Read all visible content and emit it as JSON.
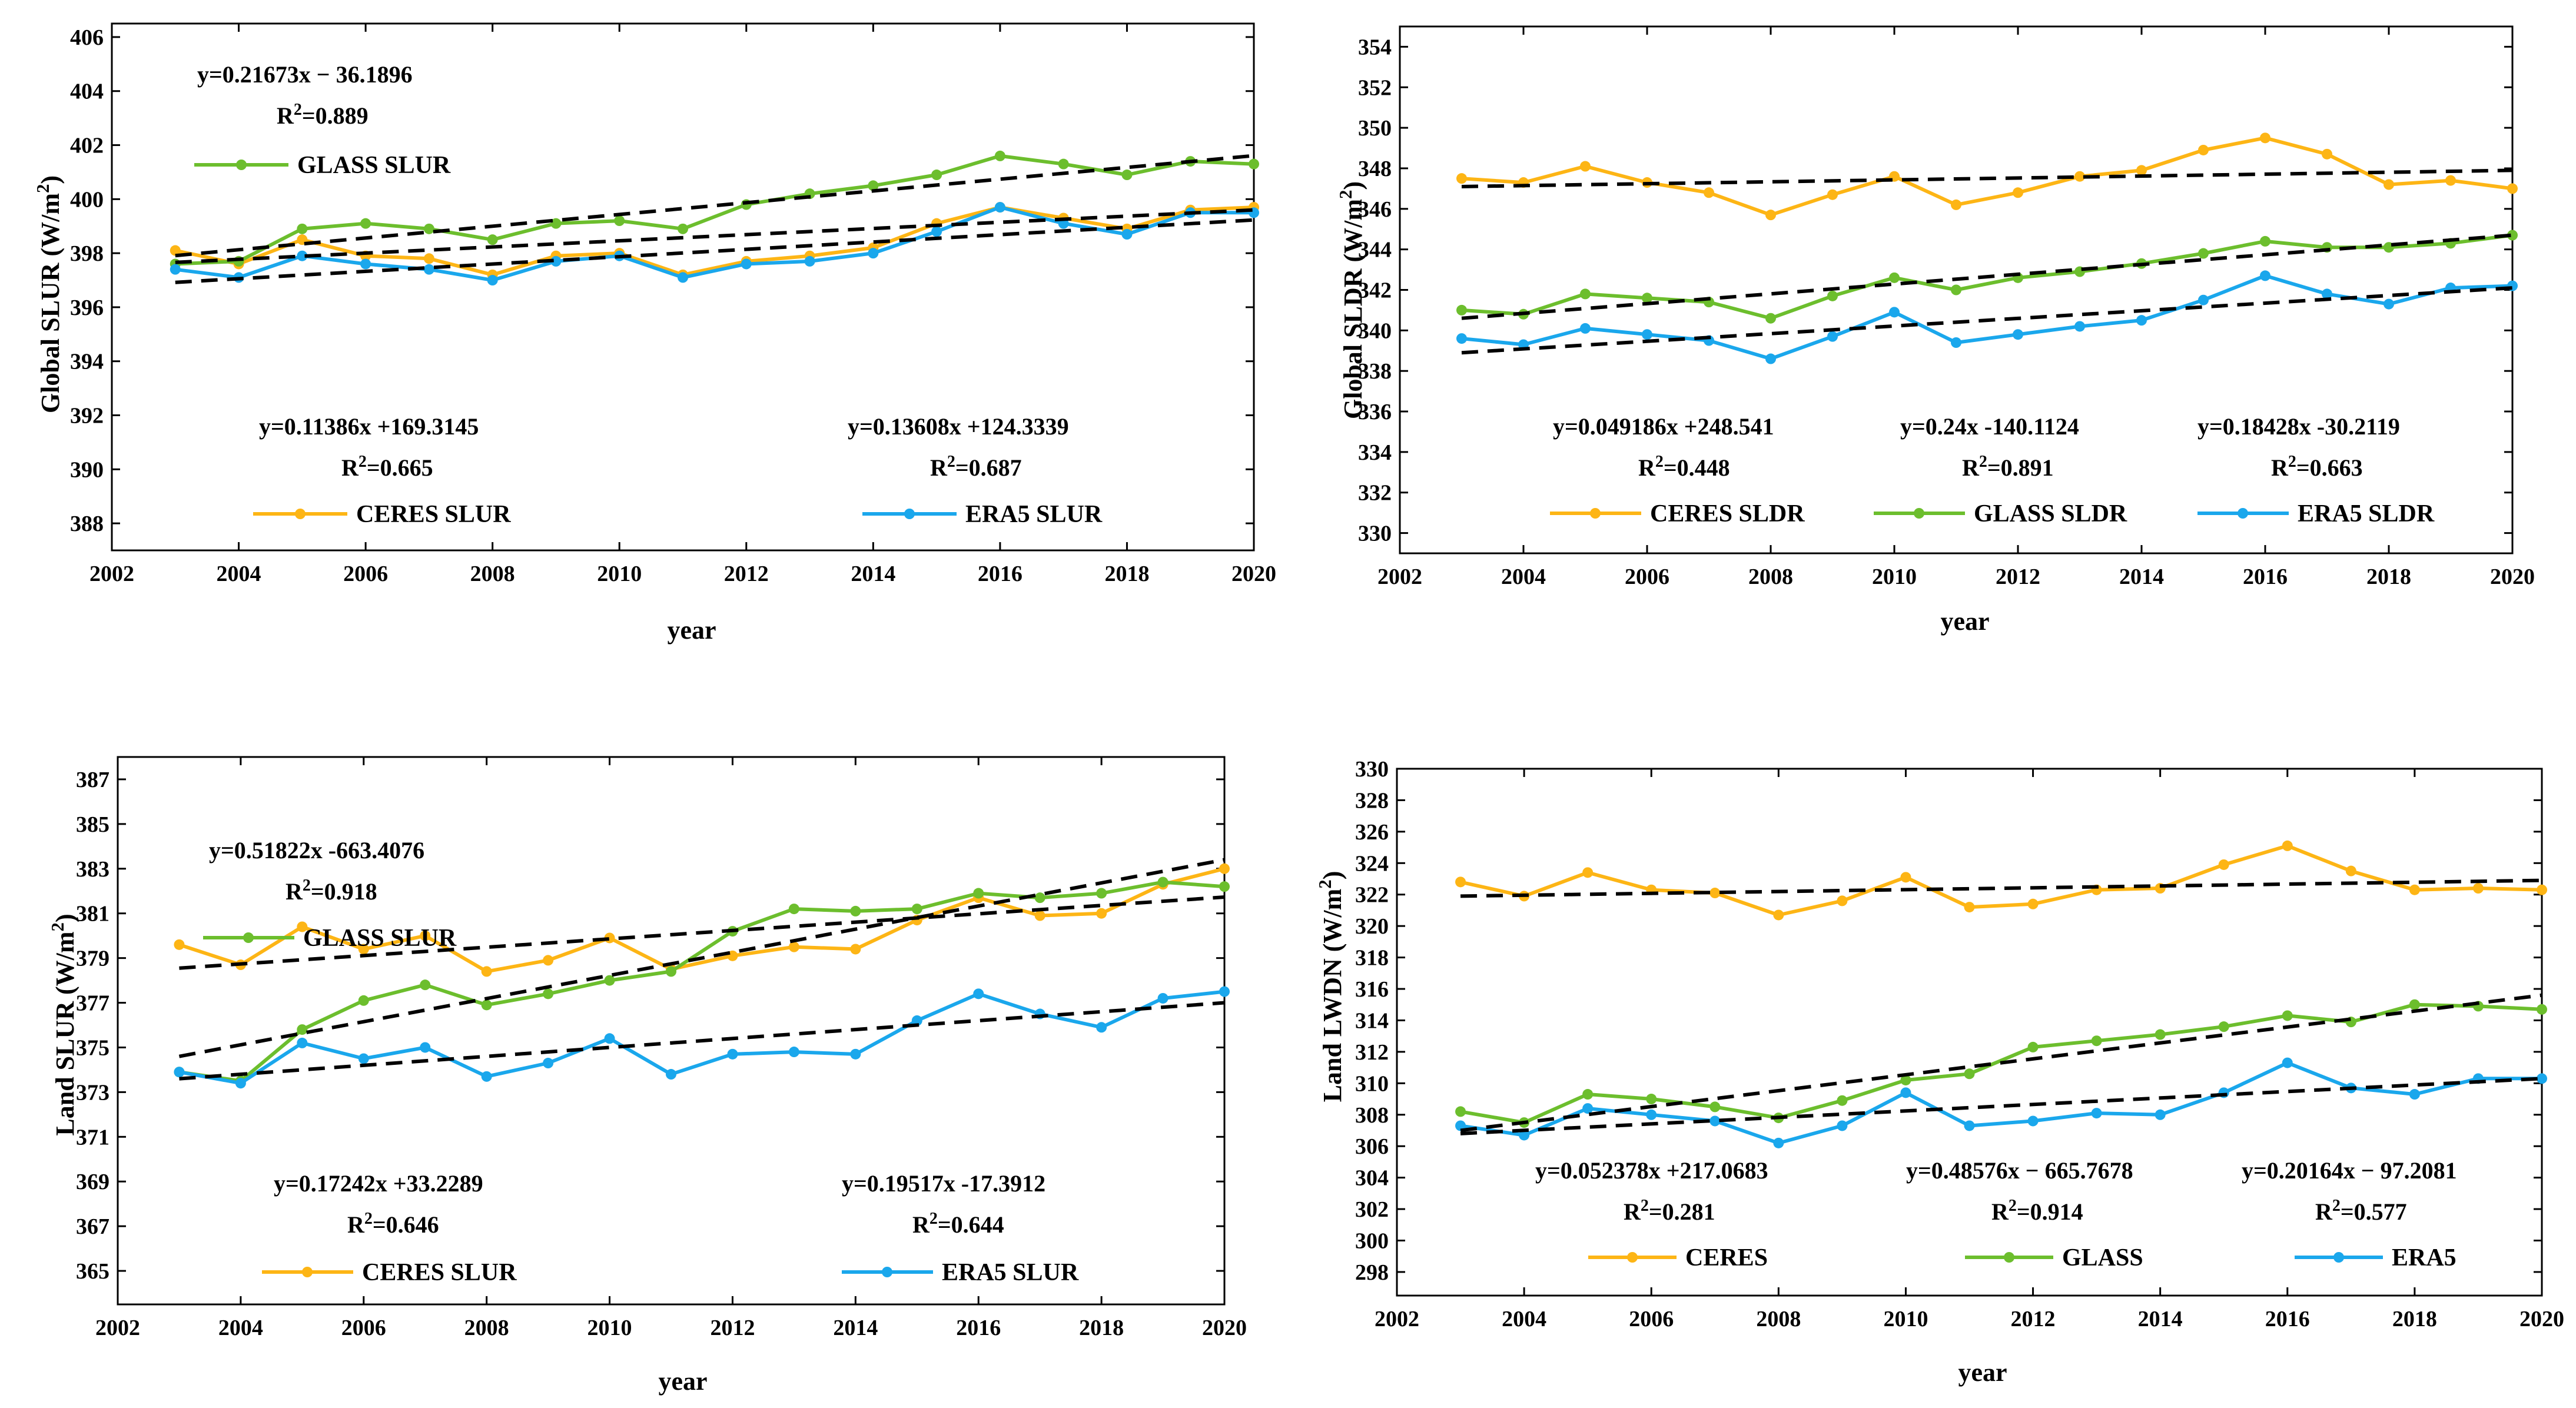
{
  "colors": {
    "ceres": "#FDB515",
    "glass": "#6CBE2D",
    "era5": "#1AA7EC"
  },
  "chart_data": [
    {
      "type": "line",
      "xlabel": "year",
      "ylabel": "Global SLUR (W/m²)",
      "xlim": [
        2002,
        2020
      ],
      "ylim": [
        387,
        406.5
      ],
      "xticks": [
        2002,
        2004,
        2006,
        2008,
        2010,
        2012,
        2014,
        2016,
        2018,
        2020
      ],
      "yticks": [
        388,
        390,
        392,
        394,
        396,
        398,
        400,
        402,
        404,
        406
      ],
      "x": [
        2003,
        2004,
        2005,
        2006,
        2007,
        2008,
        2009,
        2010,
        2011,
        2012,
        2013,
        2014,
        2015,
        2016,
        2017,
        2018,
        2019,
        2020
      ],
      "series": [
        {
          "name": "CERES SLUR",
          "color": "ceres",
          "values": [
            398.1,
            397.6,
            398.5,
            397.9,
            397.8,
            397.2,
            397.9,
            398.0,
            397.2,
            397.7,
            397.9,
            398.2,
            399.1,
            399.7,
            399.3,
            398.9,
            399.6,
            399.7
          ],
          "trend": [
            2003,
            397.66,
            2020,
            399.6
          ]
        },
        {
          "name": "GLASS SLUR",
          "color": "glass",
          "values": [
            397.6,
            397.7,
            398.9,
            399.1,
            398.9,
            398.5,
            399.1,
            399.2,
            398.9,
            399.8,
            400.2,
            400.5,
            400.9,
            401.6,
            401.3,
            400.9,
            401.4,
            401.3
          ],
          "trend": [
            2003,
            397.91,
            2020,
            401.61
          ]
        },
        {
          "name": "ERA5 SLUR",
          "color": "era5",
          "values": [
            397.4,
            397.1,
            397.9,
            397.6,
            397.4,
            397.0,
            397.7,
            397.9,
            397.1,
            397.6,
            397.7,
            398.0,
            398.8,
            399.7,
            399.1,
            398.7,
            399.5,
            399.5
          ],
          "trend": [
            2003,
            396.92,
            2020,
            399.23
          ]
        }
      ],
      "equations": [
        {
          "text": "y=0.21673x − 36.1896",
          "r2": "R²=0.889"
        },
        {
          "text": "y=0.11386x +169.3145",
          "r2": "R²=0.665"
        },
        {
          "text": "y=0.13608x +124.3339",
          "r2": "R²=0.687"
        }
      ]
    },
    {
      "type": "line",
      "xlabel": "year",
      "ylabel": "Global SLDR (W/m²)",
      "xlim": [
        2002,
        2020
      ],
      "ylim": [
        329,
        355
      ],
      "xticks": [
        2002,
        2004,
        2006,
        2008,
        2010,
        2012,
        2014,
        2016,
        2018,
        2020
      ],
      "yticks": [
        330,
        332,
        334,
        336,
        338,
        340,
        342,
        344,
        346,
        348,
        350,
        352,
        354
      ],
      "x": [
        2003,
        2004,
        2005,
        2006,
        2007,
        2008,
        2009,
        2010,
        2011,
        2012,
        2013,
        2014,
        2015,
        2016,
        2017,
        2018,
        2019,
        2020
      ],
      "series": [
        {
          "name": "CERES SLDR",
          "color": "ceres",
          "values": [
            347.5,
            347.3,
            348.1,
            347.3,
            346.8,
            345.7,
            346.7,
            347.6,
            346.2,
            346.8,
            347.6,
            347.9,
            348.9,
            349.5,
            348.7,
            347.2,
            347.4,
            347.0
          ],
          "trend": [
            2003,
            347.1,
            2020,
            347.9
          ]
        },
        {
          "name": "GLASS SLDR",
          "color": "glass",
          "values": [
            341.0,
            340.8,
            341.8,
            341.6,
            341.4,
            340.6,
            341.7,
            342.6,
            342.0,
            342.6,
            342.9,
            343.3,
            343.8,
            344.4,
            344.1,
            344.1,
            344.3,
            344.7
          ],
          "trend": [
            2003,
            340.6,
            2020,
            344.7
          ]
        },
        {
          "name": "ERA5 SLDR",
          "color": "era5",
          "values": [
            339.6,
            339.3,
            340.1,
            339.8,
            339.5,
            338.6,
            339.7,
            340.9,
            339.4,
            339.8,
            340.2,
            340.5,
            341.5,
            342.7,
            341.8,
            341.3,
            342.1,
            342.2
          ],
          "trend": [
            2003,
            338.9,
            2020,
            342.1
          ]
        }
      ],
      "equations": [
        {
          "text": "y=0.049186x +248.541",
          "r2": "R²=0.448"
        },
        {
          "text": "y=0.24x -140.1124",
          "r2": "R²=0.891"
        },
        {
          "text": "y=0.18428x -30.2119",
          "r2": "R²=0.663"
        }
      ]
    },
    {
      "type": "line",
      "xlabel": "year",
      "ylabel": "Land SLUR (W/m²)",
      "xlim": [
        2002,
        2020
      ],
      "ylim": [
        363.5,
        388
      ],
      "xticks": [
        2002,
        2004,
        2006,
        2008,
        2010,
        2012,
        2014,
        2016,
        2018,
        2020
      ],
      "yticks": [
        365,
        367,
        369,
        371,
        373,
        375,
        377,
        379,
        381,
        383,
        385,
        387
      ],
      "x": [
        2003,
        2004,
        2005,
        2006,
        2007,
        2008,
        2009,
        2010,
        2011,
        2012,
        2013,
        2014,
        2015,
        2016,
        2017,
        2018,
        2019,
        2020
      ],
      "series": [
        {
          "name": "CERES SLUR",
          "color": "ceres",
          "values": [
            379.6,
            378.7,
            380.4,
            379.4,
            380.0,
            378.4,
            378.9,
            379.9,
            378.5,
            379.1,
            379.5,
            379.4,
            380.7,
            381.7,
            380.9,
            381.0,
            382.3,
            383.0
          ],
          "trend": [
            2003,
            378.55,
            2020,
            381.73
          ]
        },
        {
          "name": "GLASS SLUR",
          "color": "glass",
          "values": [
            373.9,
            373.5,
            375.8,
            377.1,
            377.8,
            376.9,
            377.4,
            378.0,
            378.4,
            380.2,
            381.2,
            381.1,
            381.2,
            381.9,
            381.7,
            381.9,
            382.4,
            382.2
          ],
          "trend": [
            2003,
            374.6,
            2020,
            383.4
          ]
        },
        {
          "name": "ERA5 SLUR",
          "color": "era5",
          "values": [
            373.9,
            373.4,
            375.2,
            374.5,
            375.0,
            373.7,
            374.3,
            375.4,
            373.8,
            374.7,
            374.8,
            374.7,
            376.2,
            377.4,
            376.5,
            375.9,
            377.2,
            377.5
          ],
          "trend": [
            2003,
            373.6,
            2020,
            377.0
          ]
        }
      ],
      "equations": [
        {
          "text": "y=0.51822x -663.4076",
          "r2": "R²=0.918"
        },
        {
          "text": "y=0.17242x +33.2289",
          "r2": "R²=0.646"
        },
        {
          "text": "y=0.19517x -17.3912",
          "r2": "R²=0.644"
        }
      ]
    },
    {
      "type": "line",
      "xlabel": "year",
      "ylabel": "Land LWDN (W/m²)",
      "xlim": [
        2002,
        2020
      ],
      "ylim": [
        296.5,
        330
      ],
      "xticks": [
        2002,
        2004,
        2006,
        2008,
        2010,
        2012,
        2014,
        2016,
        2018,
        2020
      ],
      "yticks": [
        298,
        300,
        302,
        304,
        306,
        308,
        310,
        312,
        314,
        316,
        318,
        320,
        322,
        324,
        326,
        328,
        330
      ],
      "x": [
        2003,
        2004,
        2005,
        2006,
        2007,
        2008,
        2009,
        2010,
        2011,
        2012,
        2013,
        2014,
        2015,
        2016,
        2017,
        2018,
        2019,
        2020
      ],
      "series": [
        {
          "name": "CERES",
          "color": "ceres",
          "values": [
            322.8,
            321.9,
            323.4,
            322.3,
            322.1,
            320.7,
            321.6,
            323.1,
            321.2,
            321.4,
            322.3,
            322.4,
            323.9,
            325.1,
            323.5,
            322.3,
            322.4,
            322.3
          ],
          "trend": [
            2003,
            321.9,
            2020,
            322.9
          ]
        },
        {
          "name": "GLASS",
          "color": "glass",
          "values": [
            308.2,
            307.5,
            309.3,
            309.0,
            308.5,
            307.8,
            308.9,
            310.2,
            310.6,
            312.3,
            312.7,
            313.1,
            313.6,
            314.3,
            313.9,
            315.0,
            314.9,
            314.7
          ],
          "trend": [
            2003,
            307.0,
            2020,
            315.6
          ]
        },
        {
          "name": "ERA5",
          "color": "era5",
          "values": [
            307.3,
            306.7,
            308.4,
            308.0,
            307.6,
            306.2,
            307.3,
            309.4,
            307.3,
            307.6,
            308.1,
            308.0,
            309.4,
            311.3,
            309.7,
            309.3,
            310.3,
            310.3
          ],
          "trend": [
            2003,
            306.8,
            2020,
            310.3
          ]
        }
      ],
      "equations": [
        {
          "text": "y=0.052378x +217.0683",
          "r2": "R²=0.281"
        },
        {
          "text": "y=0.48576x − 665.7678",
          "r2": "R²=0.914"
        },
        {
          "text": "y=0.20164x − 97.2081",
          "r2": "R²=0.577"
        }
      ]
    }
  ]
}
